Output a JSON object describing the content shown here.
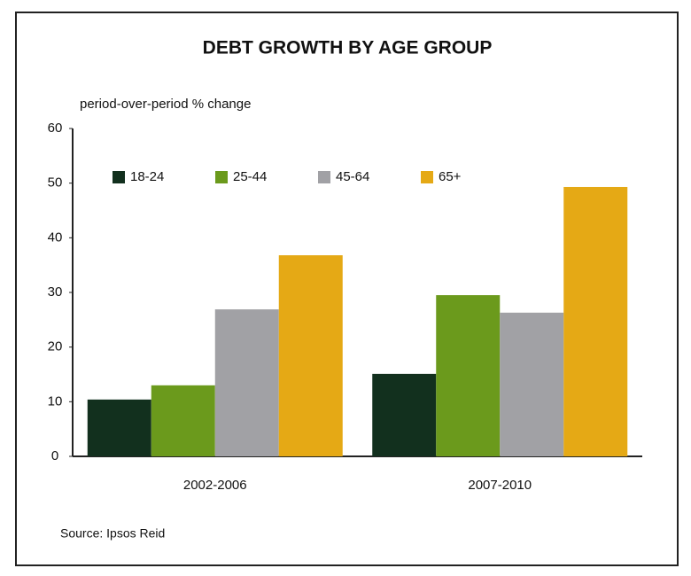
{
  "chart_data": {
    "type": "bar",
    "title": "DEBT GROWTH BY AGE GROUP",
    "y_label": "period-over-period % change",
    "source": "Source: Ipsos Reid",
    "categories": [
      "2002-2006",
      "2007-2010"
    ],
    "series": [
      {
        "name": "18-24",
        "color": "#12301e",
        "values": [
          10.4,
          15.1
        ]
      },
      {
        "name": "25-44",
        "color": "#6b9a1c",
        "values": [
          13,
          29.5
        ]
      },
      {
        "name": "45-64",
        "color": "#a1a1a5",
        "values": [
          26.9,
          26.3
        ]
      },
      {
        "name": "65+",
        "color": "#e5a915",
        "values": [
          36.8,
          49.3
        ]
      }
    ],
    "ylim": [
      0,
      60
    ],
    "yticks": [
      0,
      10,
      20,
      30,
      40,
      50,
      60
    ],
    "grid": false,
    "legend": "top-left"
  }
}
